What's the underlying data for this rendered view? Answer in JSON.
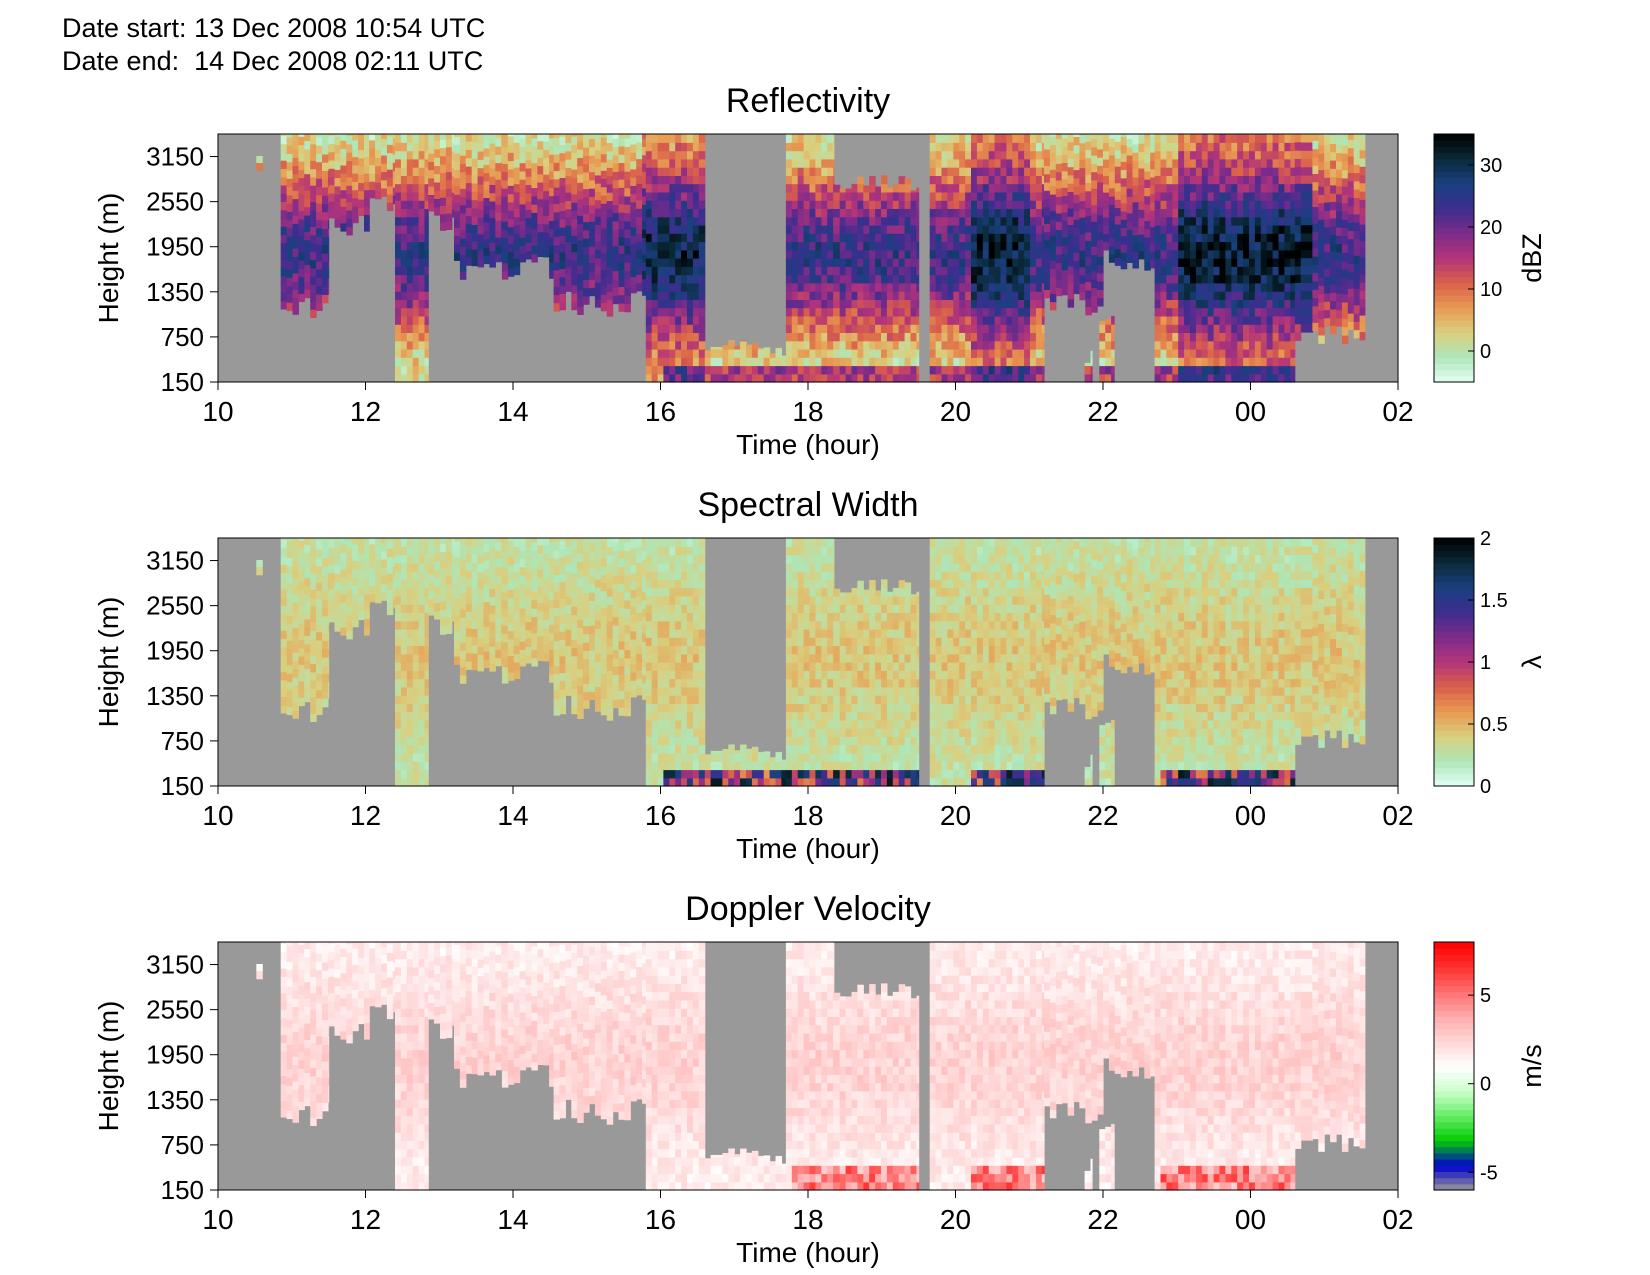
{
  "header": {
    "start_label": "Date start:",
    "start_value": "13 Dec 2008 10:54 UTC",
    "end_label": "Date end:",
    "end_value": "14 Dec 2008 02:11 UTC"
  },
  "colors": {
    "missing": "#999999",
    "plot_frame": "#000000"
  },
  "chart_data": [
    {
      "type": "heatmap",
      "title": "Reflectivity",
      "xlabel": "Time (hour)",
      "ylabel": "Height (m)",
      "x_ticks": [
        "10",
        "12",
        "14",
        "16",
        "18",
        "20",
        "22",
        "00",
        "02"
      ],
      "x_range_hours": [
        10,
        26
      ],
      "y_ticks": [
        "150",
        "750",
        "1350",
        "1950",
        "2550",
        "3150"
      ],
      "y_range": [
        150,
        3450
      ],
      "colorbar": {
        "label": "dBZ",
        "ticks": [
          "0",
          "10",
          "20",
          "30"
        ],
        "range": [
          -5,
          35
        ],
        "colors": [
          "#e4fff4",
          "#aee6b8",
          "#d9cf7e",
          "#e89a52",
          "#d9604a",
          "#b3357a",
          "#7d2c8a",
          "#3d2d8f",
          "#1a4080",
          "#0a2a3a",
          "#000000"
        ]
      },
      "pattern": "reflectivity"
    },
    {
      "type": "heatmap",
      "title": "Spectral Width",
      "xlabel": "Time (hour)",
      "ylabel": "Height (m)",
      "x_ticks": [
        "10",
        "12",
        "14",
        "16",
        "18",
        "20",
        "22",
        "00",
        "02"
      ],
      "x_range_hours": [
        10,
        26
      ],
      "y_ticks": [
        "150",
        "750",
        "1350",
        "1950",
        "2550",
        "3150"
      ],
      "y_range": [
        150,
        3450
      ],
      "colorbar": {
        "label": "λ",
        "ticks": [
          "0",
          "0.5",
          "1",
          "1.5",
          "2"
        ],
        "range": [
          0,
          2
        ],
        "colors": [
          "#e4fff4",
          "#aee6b8",
          "#d9cf7e",
          "#e89a52",
          "#d9604a",
          "#b3357a",
          "#7d2c8a",
          "#3d2d8f",
          "#1a4080",
          "#0a2a3a",
          "#000000"
        ]
      },
      "pattern": "width"
    },
    {
      "type": "heatmap",
      "title": "Doppler Velocity",
      "xlabel": "Time (hour)",
      "ylabel": "Height (m)",
      "x_ticks": [
        "10",
        "12",
        "14",
        "16",
        "18",
        "20",
        "22",
        "00",
        "02"
      ],
      "x_range_hours": [
        10,
        26
      ],
      "y_ticks": [
        "150",
        "750",
        "1350",
        "1950",
        "2550",
        "3150"
      ],
      "y_range": [
        150,
        3450
      ],
      "colorbar": {
        "label": "m/s",
        "ticks": [
          "-5",
          "0",
          "5"
        ],
        "range": [
          -6,
          8
        ],
        "colors": [
          "#999999",
          "#0000cc",
          "#00cc00",
          "#66ee66",
          "#ccffcc",
          "#ffffff",
          "#ffd6d6",
          "#ffaaaa",
          "#ff7070",
          "#ff3030",
          "#ff0000"
        ]
      },
      "pattern": "velocity"
    }
  ],
  "cloud_columns": [
    {
      "start": 10.52,
      "end": 10.6,
      "base": 2800,
      "top": 3060
    },
    {
      "start": 10.85,
      "end": 11.5,
      "base": 1150,
      "top": 3450
    },
    {
      "start": 11.5,
      "end": 12.05,
      "base": 2250,
      "top": 3450
    },
    {
      "start": 12.05,
      "end": 12.4,
      "base": 2500,
      "top": 3450
    },
    {
      "start": 12.4,
      "end": 12.85,
      "base": 150,
      "top": 3450
    },
    {
      "start": 12.85,
      "end": 13.2,
      "base": 2350,
      "top": 3450
    },
    {
      "start": 13.2,
      "end": 13.85,
      "base": 1600,
      "top": 3450
    },
    {
      "start": 13.85,
      "end": 14.55,
      "base": 1700,
      "top": 3450
    },
    {
      "start": 14.55,
      "end": 15.8,
      "base": 1200,
      "top": 3450
    },
    {
      "start": 15.8,
      "end": 16.6,
      "base": 150,
      "top": 3450
    },
    {
      "start": 16.6,
      "end": 17.7,
      "base": 150,
      "top": 600
    },
    {
      "start": 17.7,
      "end": 18.35,
      "base": 150,
      "top": 3450
    },
    {
      "start": 18.35,
      "end": 19.5,
      "base": 150,
      "top": 2800
    },
    {
      "start": 19.65,
      "end": 21.2,
      "base": 150,
      "top": 3450
    },
    {
      "start": 21.2,
      "end": 22.0,
      "base": 1200,
      "top": 3450
    },
    {
      "start": 21.75,
      "end": 21.85,
      "base": 150,
      "top": 500
    },
    {
      "start": 21.95,
      "end": 22.15,
      "base": 150,
      "top": 1000
    },
    {
      "start": 22.0,
      "end": 22.7,
      "base": 1800,
      "top": 3450
    },
    {
      "start": 22.7,
      "end": 24.6,
      "base": 150,
      "top": 3450
    },
    {
      "start": 24.6,
      "end": 25.55,
      "base": 750,
      "top": 3450
    }
  ]
}
